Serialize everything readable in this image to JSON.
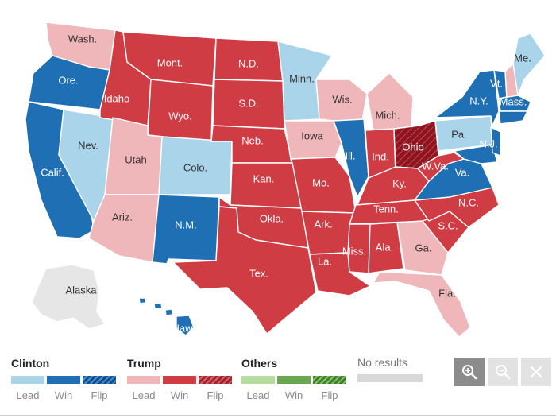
{
  "colors": {
    "clinton_lead": "#a9d4ea",
    "clinton_win": "#1f6fb5",
    "trump_lead": "#f0b7ba",
    "trump_win": "#d03c44",
    "trump_flip": "#8e1520",
    "others_lead": "#b7dca0",
    "others_win": "#6aa84f",
    "no_results": "#d8d8d8",
    "ghost": "#e6e6e6"
  },
  "states": [
    {
      "id": "WA",
      "label": "Wash.",
      "status": "trump_lead"
    },
    {
      "id": "OR",
      "label": "Ore.",
      "status": "clinton_win"
    },
    {
      "id": "CA",
      "label": "Calif.",
      "status": "clinton_win"
    },
    {
      "id": "NV",
      "label": "Nev.",
      "status": "clinton_lead"
    },
    {
      "id": "ID",
      "label": "Idaho",
      "status": "trump_win"
    },
    {
      "id": "MT",
      "label": "Mont.",
      "status": "trump_win"
    },
    {
      "id": "WY",
      "label": "Wyo.",
      "status": "trump_win"
    },
    {
      "id": "UT",
      "label": "Utah",
      "status": "trump_lead"
    },
    {
      "id": "AZ",
      "label": "Ariz.",
      "status": "trump_lead"
    },
    {
      "id": "CO",
      "label": "Colo.",
      "status": "clinton_lead"
    },
    {
      "id": "NM",
      "label": "N.M.",
      "status": "clinton_win"
    },
    {
      "id": "ND",
      "label": "N.D.",
      "status": "trump_win"
    },
    {
      "id": "SD",
      "label": "S.D.",
      "status": "trump_win"
    },
    {
      "id": "NE",
      "label": "Neb.",
      "status": "trump_win"
    },
    {
      "id": "KS",
      "label": "Kan.",
      "status": "trump_win"
    },
    {
      "id": "OK",
      "label": "Okla.",
      "status": "trump_win"
    },
    {
      "id": "TX",
      "label": "Tex.",
      "status": "trump_win"
    },
    {
      "id": "MN",
      "label": "Minn.",
      "status": "clinton_lead"
    },
    {
      "id": "IA",
      "label": "Iowa",
      "status": "trump_lead"
    },
    {
      "id": "MO",
      "label": "Mo.",
      "status": "trump_win"
    },
    {
      "id": "AR",
      "label": "Ark.",
      "status": "trump_win"
    },
    {
      "id": "LA",
      "label": "La.",
      "status": "trump_win"
    },
    {
      "id": "WI",
      "label": "Wis.",
      "status": "trump_lead"
    },
    {
      "id": "IL",
      "label": "Ill.",
      "status": "clinton_win"
    },
    {
      "id": "MI",
      "label": "Mich.",
      "status": "trump_lead"
    },
    {
      "id": "IN",
      "label": "Ind.",
      "status": "trump_win"
    },
    {
      "id": "OH",
      "label": "Ohio",
      "status": "trump_flip"
    },
    {
      "id": "KY",
      "label": "Ky.",
      "status": "trump_win"
    },
    {
      "id": "TN",
      "label": "Tenn.",
      "status": "trump_win"
    },
    {
      "id": "MS",
      "label": "Miss.",
      "status": "trump_win"
    },
    {
      "id": "AL",
      "label": "Ala.",
      "status": "trump_win"
    },
    {
      "id": "GA",
      "label": "Ga.",
      "status": "trump_lead"
    },
    {
      "id": "FL",
      "label": "Fla.",
      "status": "trump_lead"
    },
    {
      "id": "SC",
      "label": "S.C.",
      "status": "trump_win"
    },
    {
      "id": "NC",
      "label": "N.C.",
      "status": "trump_win"
    },
    {
      "id": "VA",
      "label": "Va.",
      "status": "clinton_win"
    },
    {
      "id": "WV",
      "label": "W.Va.",
      "status": "trump_win"
    },
    {
      "id": "PA",
      "label": "Pa.",
      "status": "clinton_lead"
    },
    {
      "id": "NY",
      "label": "N.Y.",
      "status": "clinton_win"
    },
    {
      "id": "VT",
      "label": "Vt.",
      "status": "clinton_win"
    },
    {
      "id": "NH",
      "label": "",
      "status": "trump_lead"
    },
    {
      "id": "ME",
      "label": "Me.",
      "status": "clinton_lead"
    },
    {
      "id": "MA",
      "label": "Mass.",
      "status": "clinton_win"
    },
    {
      "id": "NJ",
      "label": "N.J.",
      "status": "clinton_win"
    },
    {
      "id": "MD",
      "label": "",
      "status": "clinton_win"
    },
    {
      "id": "AK",
      "label": "Alaska",
      "status": "no_results"
    },
    {
      "id": "HI",
      "label": "Hawaii",
      "status": "clinton_win"
    }
  ],
  "legend": {
    "clinton": {
      "title": "Clinton",
      "lead": "Lead",
      "win": "Win",
      "flip": "Flip"
    },
    "trump": {
      "title": "Trump",
      "lead": "Lead",
      "win": "Win",
      "flip": "Flip"
    },
    "others": {
      "title": "Others",
      "lead": "Lead",
      "win": "Win",
      "flip": "Flip"
    },
    "no_results": "No results"
  },
  "controls": {
    "zoom_in": "zoom-in-icon",
    "zoom_out": "zoom-out-icon",
    "close": "close-icon"
  }
}
